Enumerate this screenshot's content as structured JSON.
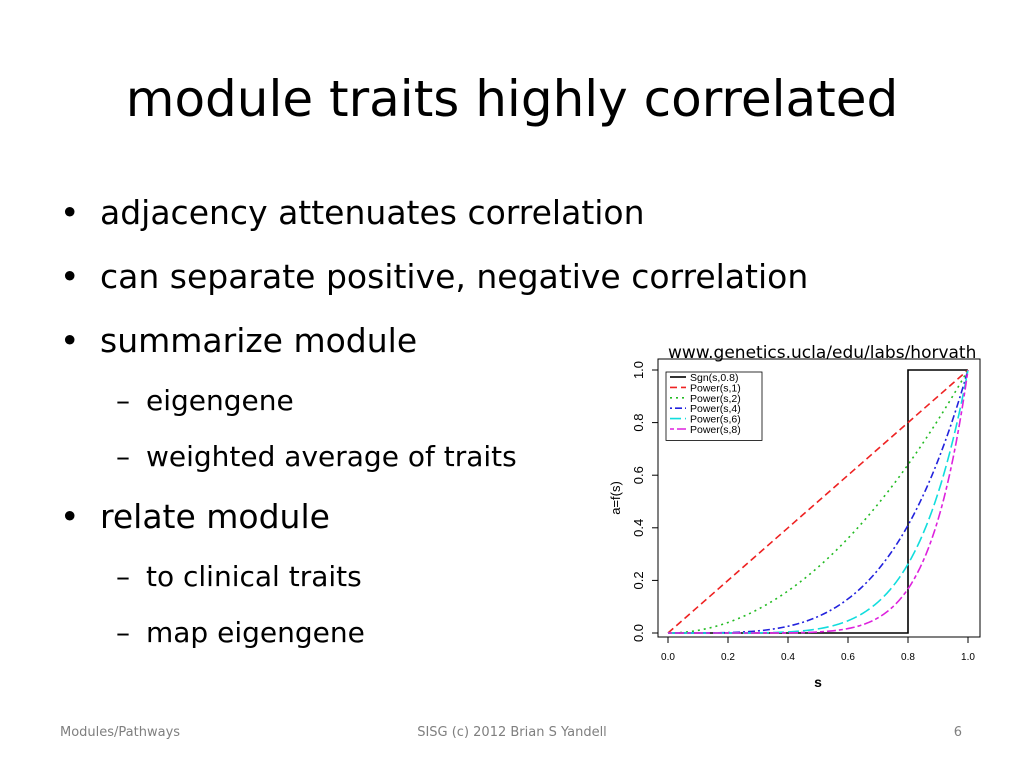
{
  "slide": {
    "title": "module traits highly correlated",
    "bullets": [
      {
        "text": "adjacency attenuates correlation"
      },
      {
        "text": "can separate positive, negative correlation"
      },
      {
        "text": "summarize module",
        "sub": [
          "eigengene",
          "weighted average of traits"
        ]
      },
      {
        "text": "relate module",
        "sub": [
          "to clinical traits",
          "map eigengene"
        ]
      }
    ],
    "bullet_glyph": "•",
    "dash_glyph": "–",
    "url": "www.genetics.ucla/edu/labs/horvath"
  },
  "footer": {
    "left": "Modules/Pathways",
    "center": "SISG (c) 2012 Brian S Yandell",
    "page": "6"
  },
  "chart_data": {
    "type": "line",
    "xlabel": "s",
    "ylabel": "a=f(s)",
    "xlim": [
      0,
      1
    ],
    "ylim": [
      0,
      1
    ],
    "xticks": [
      "0.0",
      "0.2",
      "0.4",
      "0.6",
      "0.8",
      "1.0"
    ],
    "yticks": [
      "0.0",
      "0.2",
      "0.4",
      "0.6",
      "0.8",
      "1.0"
    ],
    "legend_position": "top-left",
    "grid": false,
    "series": [
      {
        "name": "Sgn(s,0.8)",
        "kind": "step",
        "threshold": 0.8,
        "color": "#000000",
        "dash": "solid"
      },
      {
        "name": "Power(s,1)",
        "kind": "power",
        "exponent": 1,
        "color": "#ee2222",
        "dash": "dashed"
      },
      {
        "name": "Power(s,2)",
        "kind": "power",
        "exponent": 2,
        "color": "#22bb22",
        "dash": "dotted"
      },
      {
        "name": "Power(s,4)",
        "kind": "power",
        "exponent": 4,
        "color": "#2222dd",
        "dash": "dotdash"
      },
      {
        "name": "Power(s,6)",
        "kind": "power",
        "exponent": 6,
        "color": "#11dddd",
        "dash": "longdash"
      },
      {
        "name": "Power(s,8)",
        "kind": "power",
        "exponent": 8,
        "color": "#dd22dd",
        "dash": "twodash"
      }
    ]
  }
}
